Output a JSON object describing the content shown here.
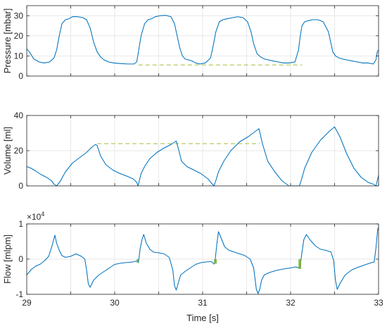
{
  "colors": {
    "series": "#0072BD",
    "reference": "#B6CB5C",
    "marker": "#77AC30"
  },
  "chart_data": [
    {
      "type": "line",
      "ylabel": "Pressure [mbar]",
      "xlim": [
        29,
        33
      ],
      "ylim": [
        0,
        35
      ],
      "yticks": [
        0,
        10,
        20,
        30
      ],
      "ytick_labels": [
        "0",
        "10",
        "20",
        "30"
      ],
      "grid": true,
      "series": [
        {
          "x": [
            29.0,
            29.03,
            29.08,
            29.14,
            29.2,
            29.26,
            29.31,
            29.34,
            29.37,
            29.4,
            29.44,
            29.48,
            29.52,
            29.58,
            29.64,
            29.68,
            29.72,
            29.76,
            29.8,
            29.84,
            29.88,
            29.93,
            29.99,
            30.07,
            30.15,
            30.22,
            30.25,
            30.27,
            30.3,
            30.34,
            30.38,
            30.42,
            30.46,
            30.52,
            30.58,
            30.64,
            30.68,
            30.71,
            30.74,
            30.77,
            30.8,
            30.84,
            30.88,
            30.92,
            30.97,
            31.03,
            31.09,
            31.12,
            31.15,
            31.19,
            31.23,
            31.28,
            31.34,
            31.4,
            31.46,
            31.51,
            31.55,
            31.58,
            31.62,
            31.66,
            31.7,
            31.75,
            31.8,
            31.86,
            31.92,
            31.98,
            32.05,
            32.09,
            32.11,
            32.13,
            32.16,
            32.2,
            32.25,
            32.31,
            32.37,
            32.43,
            32.46,
            32.48,
            32.51,
            32.55,
            32.59,
            32.64,
            32.7,
            32.76,
            32.82,
            32.88,
            32.94,
            32.97,
            32.985,
            33.0
          ],
          "y": [
            13.5,
            12,
            8.5,
            7,
            6.5,
            7,
            9,
            13,
            20,
            26,
            28,
            28.5,
            29.5,
            29.5,
            29,
            28,
            24,
            17,
            12,
            9.5,
            8,
            7,
            6.5,
            6.2,
            6,
            6,
            7,
            12,
            20,
            26,
            28,
            28.5,
            29.5,
            30,
            30.2,
            29.5,
            26,
            20,
            14,
            10,
            8.5,
            8,
            7.5,
            6.5,
            6,
            6.5,
            9,
            15,
            22,
            27,
            28,
            28.5,
            29,
            29.5,
            29,
            27,
            22,
            16,
            11,
            9.5,
            8.5,
            8,
            7.5,
            7,
            6.5,
            6.5,
            7,
            13,
            20,
            25,
            27,
            27.5,
            28,
            28,
            27,
            22,
            16,
            12,
            10,
            9,
            8.5,
            8,
            7.5,
            7,
            6.5,
            6.5,
            6,
            8,
            12,
            13
          ]
        }
      ],
      "reference_line": {
        "x": [
          30.27,
          32.13
        ],
        "y": [
          5.5,
          5.5
        ]
      }
    },
    {
      "type": "line",
      "ylabel": "Volume [ml]",
      "xlim": [
        29,
        33
      ],
      "ylim": [
        0,
        40
      ],
      "yticks": [
        0,
        20,
        40
      ],
      "ytick_labels": [
        "0",
        "20",
        "40"
      ],
      "grid": true,
      "series": [
        {
          "x": [
            29.0,
            29.05,
            29.1,
            29.16,
            29.22,
            29.28,
            29.31,
            29.34,
            29.38,
            29.44,
            29.52,
            29.6,
            29.68,
            29.74,
            29.78,
            29.8,
            29.84,
            29.9,
            29.98,
            30.06,
            30.14,
            30.21,
            30.25,
            30.265,
            30.28,
            30.3,
            30.34,
            30.4,
            30.48,
            30.56,
            30.64,
            30.7,
            30.73,
            30.76,
            30.82,
            30.9,
            30.98,
            31.06,
            31.11,
            31.13,
            31.15,
            31.18,
            31.24,
            31.32,
            31.42,
            31.52,
            31.6,
            31.64,
            31.68,
            31.74,
            31.82,
            31.9,
            31.98,
            32.05,
            32.08,
            32.1,
            32.12,
            32.16,
            32.24,
            32.34,
            32.44,
            32.5,
            32.56,
            32.64,
            32.72,
            32.8,
            32.88,
            32.94,
            32.97,
            32.985,
            33.0
          ],
          "y": [
            11,
            10,
            8.5,
            6.5,
            5,
            3,
            1,
            0,
            2.5,
            8,
            13,
            16,
            19,
            22,
            23.5,
            23,
            17,
            12,
            9,
            7,
            5.5,
            4,
            2,
            0,
            3,
            7,
            11,
            15.5,
            19,
            21.5,
            23.5,
            25.5,
            20,
            14,
            11,
            9,
            7,
            4,
            1,
            0,
            3,
            8,
            14,
            20,
            25,
            28,
            31,
            32.5,
            24,
            14,
            8,
            3,
            0,
            0,
            0,
            0,
            3,
            10,
            19,
            26,
            31,
            33.5,
            28,
            18,
            10,
            5,
            2,
            1,
            0,
            3,
            6
          ]
        }
      ],
      "reference_line": {
        "x": [
          29.8,
          31.65
        ],
        "y": [
          24,
          24
        ]
      }
    },
    {
      "type": "line",
      "ylabel": "Flow [mlpm]",
      "xlabel": "Time [s]",
      "xlim": [
        29,
        33
      ],
      "ylim": [
        -10000,
        10000
      ],
      "yticks": [
        -10000,
        0,
        10000
      ],
      "ytick_labels": [
        "-1",
        "0",
        "1"
      ],
      "ytick_exponent": "4",
      "xticks": [
        29,
        30,
        31,
        32,
        33
      ],
      "xtick_labels": [
        "29",
        "30",
        "31",
        "32",
        "33"
      ],
      "grid": true,
      "series": [
        {
          "x": [
            29.0,
            29.05,
            29.1,
            29.15,
            29.2,
            29.25,
            29.29,
            29.32,
            29.34,
            29.37,
            29.4,
            29.44,
            29.5,
            29.56,
            29.62,
            29.66,
            29.68,
            29.7,
            29.72,
            29.76,
            29.82,
            29.88,
            29.94,
            30.0,
            30.06,
            30.12,
            30.18,
            30.24,
            30.26,
            30.27,
            30.29,
            30.31,
            30.33,
            30.36,
            30.4,
            30.44,
            30.5,
            30.56,
            30.62,
            30.66,
            30.68,
            30.7,
            30.72,
            30.75,
            30.8,
            30.86,
            30.92,
            30.98,
            31.04,
            31.1,
            31.13,
            31.14,
            31.16,
            31.18,
            31.21,
            31.25,
            31.3,
            31.36,
            31.42,
            31.48,
            31.54,
            31.58,
            31.61,
            31.63,
            31.65,
            31.67,
            31.7,
            31.76,
            31.84,
            31.92,
            32.0,
            32.06,
            32.09,
            32.11,
            32.13,
            32.15,
            32.18,
            32.22,
            32.28,
            32.34,
            32.4,
            32.46,
            32.49,
            32.51,
            32.53,
            32.56,
            32.62,
            32.7,
            32.78,
            32.86,
            32.92,
            32.95,
            32.97,
            32.99,
            33.0
          ],
          "y": [
            -4500,
            -3000,
            -2000,
            -1500,
            -500,
            800,
            4000,
            6800,
            4500,
            2500,
            1000,
            500,
            800,
            1500,
            800,
            0,
            -3000,
            -7000,
            -8000,
            -6000,
            -4500,
            -3500,
            -2500,
            -1500,
            -1200,
            -1000,
            -900,
            -600,
            -500,
            -1000,
            3000,
            5500,
            7000,
            4500,
            2800,
            2000,
            1800,
            1500,
            500,
            -3000,
            -7500,
            -8800,
            -7000,
            -4500,
            -3500,
            -2500,
            -1500,
            -1000,
            -800,
            -700,
            -1400,
            -800,
            4000,
            7800,
            6000,
            3500,
            2500,
            2000,
            1500,
            1000,
            0,
            -2500,
            -8500,
            -9800,
            -8500,
            -6000,
            -4500,
            -3800,
            -3200,
            -2800,
            -2500,
            -2200,
            -2500,
            -1800,
            2000,
            5500,
            7000,
            5500,
            3800,
            2800,
            2500,
            2000,
            -500,
            -6000,
            -8600,
            -7000,
            -4500,
            -3000,
            -2200,
            -1500,
            -1000,
            -800,
            3000,
            8500,
            9000
          ]
        }
      ],
      "markers": [
        {
          "x": [
            30.25,
            30.27
          ],
          "y": [
            -1000,
            0
          ]
        },
        {
          "x": [
            31.13,
            31.16
          ],
          "y": [
            -1300,
            0
          ]
        },
        {
          "x": [
            32.09,
            32.12
          ],
          "y": [
            -2800,
            0
          ]
        }
      ]
    }
  ]
}
